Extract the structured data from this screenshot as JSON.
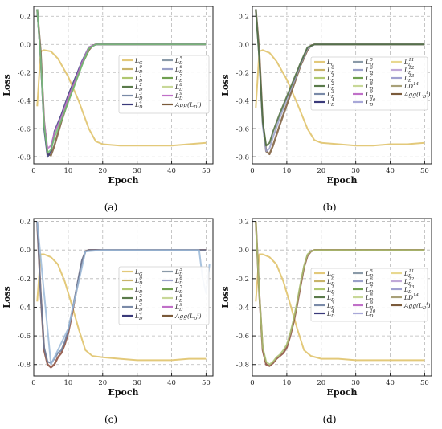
{
  "chart_data": [
    {
      "type": "line",
      "caption": "(a)",
      "xlabel": "Epoch",
      "ylabel": "Loss",
      "xlim": [
        0,
        52
      ],
      "ylim": [
        -0.85,
        0.27
      ],
      "xticks": [
        0,
        10,
        20,
        30,
        40,
        50
      ],
      "yticks": [
        0.2,
        0.0,
        -0.2,
        -0.4,
        -0.6,
        -0.8
      ],
      "grid": true,
      "legend_placement": "right",
      "legend_columns": [
        [
          "L_G",
          "L_D^0",
          "L_D^1",
          "L_D^2",
          "L_D^3",
          "L_D^4"
        ],
        [
          "L_D^5",
          "L_D^6",
          "L_D^7",
          "L_D^8",
          "L_D^9",
          "Agg(L_D^t)"
        ]
      ],
      "series": [
        {
          "name": "L_G",
          "color": "#e3c97a",
          "x": [
            1,
            2,
            3,
            5,
            7,
            10,
            13,
            16,
            18,
            20,
            25,
            30,
            35,
            40,
            45,
            50
          ],
          "y": [
            -0.44,
            -0.05,
            -0.04,
            -0.05,
            -0.1,
            -0.23,
            -0.4,
            -0.6,
            -0.69,
            -0.71,
            -0.72,
            -0.72,
            -0.72,
            -0.72,
            -0.71,
            -0.7
          ]
        },
        {
          "name": "Agg(L_D^t)",
          "color": "#7a5a3a",
          "x": [
            1,
            2,
            3,
            4,
            5,
            6,
            8,
            10,
            12,
            14,
            16,
            17,
            18,
            20,
            25,
            30,
            40,
            50
          ],
          "y": [
            0.25,
            -0.05,
            -0.55,
            -0.78,
            -0.79,
            -0.72,
            -0.55,
            -0.4,
            -0.27,
            -0.14,
            -0.04,
            -0.01,
            0.0,
            0.0,
            0.0,
            0.0,
            0.0,
            0.0
          ]
        },
        {
          "name": "L_D^2",
          "color": "#3a3a7a",
          "x": [
            1,
            2,
            3,
            4,
            5,
            6,
            8,
            10,
            12,
            14,
            16,
            18,
            20,
            30,
            50
          ],
          "y": [
            0.25,
            -0.1,
            -0.6,
            -0.8,
            -0.76,
            -0.62,
            -0.5,
            -0.36,
            -0.24,
            -0.12,
            -0.02,
            0.0,
            0.0,
            0.0,
            0.0
          ]
        },
        {
          "name": "L_D^9",
          "color": "#c070c8",
          "x": [
            1,
            2,
            3,
            4,
            5,
            6,
            8,
            10,
            12,
            14,
            16,
            18,
            20,
            30,
            50
          ],
          "y": [
            0.25,
            -0.1,
            -0.55,
            -0.74,
            -0.72,
            -0.63,
            -0.52,
            -0.38,
            -0.26,
            -0.13,
            -0.02,
            0.0,
            0.0,
            0.0,
            0.0
          ]
        },
        {
          "name": "L_D^6",
          "color": "#70c070",
          "x": [
            1,
            2,
            3,
            4,
            5,
            6,
            8,
            10,
            12,
            14,
            16,
            18,
            20,
            30,
            50
          ],
          "y": [
            0.25,
            -0.1,
            -0.58,
            -0.77,
            -0.75,
            -0.66,
            -0.54,
            -0.41,
            -0.28,
            -0.15,
            -0.03,
            0.0,
            0.0,
            0.0,
            0.0
          ]
        }
      ]
    },
    {
      "type": "line",
      "caption": "(b)",
      "xlabel": "Epoch",
      "ylabel": "Loss",
      "xlim": [
        0,
        52
      ],
      "ylim": [
        -0.85,
        0.27
      ],
      "xticks": [
        0,
        10,
        20,
        30,
        40,
        50
      ],
      "yticks": [
        0.2,
        0.0,
        -0.2,
        -0.4,
        -0.6,
        -0.8
      ],
      "grid": true,
      "legend_placement": "right",
      "legend_columns": [
        [
          "L_G",
          "L_D^0",
          "L_D^1",
          "L_D^2",
          "L_D^3",
          "L_D^4"
        ],
        [
          "L_D^5",
          "L_D^6",
          "L_D^7",
          "L_D^8",
          "L_D^9",
          "L_D^10"
        ],
        [
          "L_D^11",
          "L_D^12",
          "L_D^13",
          "LD^14",
          "Agg(L_D^t)"
        ]
      ],
      "series": [
        {
          "name": "L_G",
          "color": "#e3c97a",
          "x": [
            1,
            2,
            3,
            5,
            7,
            10,
            13,
            16,
            18,
            20,
            25,
            30,
            35,
            40,
            45,
            50
          ],
          "y": [
            -0.45,
            -0.05,
            -0.04,
            -0.06,
            -0.12,
            -0.25,
            -0.42,
            -0.6,
            -0.68,
            -0.7,
            -0.71,
            -0.72,
            -0.72,
            -0.71,
            -0.71,
            -0.7
          ]
        },
        {
          "name": "Agg(L_D^t)",
          "color": "#7a5a3a",
          "x": [
            1,
            2,
            3,
            4,
            5,
            6,
            8,
            10,
            12,
            14,
            16,
            17,
            18,
            20,
            25,
            30,
            40,
            50
          ],
          "y": [
            0.25,
            -0.05,
            -0.55,
            -0.76,
            -0.78,
            -0.72,
            -0.57,
            -0.43,
            -0.29,
            -0.15,
            -0.04,
            -0.01,
            0.0,
            0.0,
            0.0,
            0.0,
            0.0,
            0.0
          ]
        },
        {
          "name": "L_D^6",
          "color": "#9aa0c8",
          "x": [
            1,
            2,
            3,
            4,
            5,
            6,
            8,
            10,
            12,
            14,
            16,
            18,
            20,
            30,
            50
          ],
          "y": [
            0.25,
            -0.1,
            -0.58,
            -0.76,
            -0.74,
            -0.66,
            -0.52,
            -0.39,
            -0.27,
            -0.14,
            -0.03,
            0.0,
            0.0,
            0.0,
            0.0
          ]
        },
        {
          "name": "L_D^3",
          "color": "#4a6a3a",
          "x": [
            1,
            2,
            3,
            4,
            5,
            6,
            8,
            10,
            12,
            14,
            16,
            18,
            20,
            30,
            50
          ],
          "y": [
            0.25,
            -0.1,
            -0.55,
            -0.72,
            -0.7,
            -0.62,
            -0.49,
            -0.37,
            -0.25,
            -0.13,
            -0.02,
            0.0,
            0.0,
            0.0,
            0.0
          ]
        }
      ]
    },
    {
      "type": "line",
      "caption": "(c)",
      "xlabel": "Epoch",
      "ylabel": "Loss",
      "xlim": [
        0,
        52
      ],
      "ylim": [
        -0.88,
        0.22
      ],
      "xticks": [
        0,
        10,
        20,
        30,
        40,
        50
      ],
      "yticks": [
        0.2,
        0.0,
        -0.2,
        -0.4,
        -0.6,
        -0.8
      ],
      "grid": true,
      "legend_placement": "right",
      "legend_columns": [
        [
          "L_G",
          "L_D^0",
          "L_D^1",
          "L_D^2",
          "L_D^3",
          "L_D^4"
        ],
        [
          "L_D^5",
          "L_D^6",
          "L_D^7",
          "L_D^8",
          "L_D^9",
          "Agg(L_D^t)"
        ]
      ],
      "series": [
        {
          "name": "L_G",
          "color": "#e3c97a",
          "x": [
            1,
            2,
            3,
            5,
            7,
            9,
            11,
            13,
            15,
            17,
            20,
            25,
            30,
            35,
            40,
            45,
            50
          ],
          "y": [
            -0.36,
            -0.03,
            -0.03,
            -0.05,
            -0.1,
            -0.22,
            -0.38,
            -0.55,
            -0.7,
            -0.74,
            -0.75,
            -0.76,
            -0.77,
            -0.77,
            -0.77,
            -0.76,
            -0.76
          ]
        },
        {
          "name": "Agg(L_D^t)",
          "color": "#8a4a3a",
          "x": [
            1,
            2,
            3,
            4,
            5,
            6,
            7,
            8,
            9,
            10,
            11,
            12,
            13,
            14,
            15,
            16,
            18,
            20,
            30,
            40,
            50
          ],
          "y": [
            0.2,
            -0.3,
            -0.7,
            -0.8,
            -0.82,
            -0.8,
            -0.75,
            -0.72,
            -0.66,
            -0.58,
            -0.46,
            -0.33,
            -0.2,
            -0.08,
            -0.01,
            0.0,
            0.0,
            0.0,
            0.0,
            0.0,
            0.0
          ]
        },
        {
          "name": "L_D^2",
          "color": "#6a7a9a",
          "x": [
            1,
            2,
            3,
            4,
            5,
            6,
            7,
            8,
            9,
            10,
            11,
            12,
            13,
            14,
            15,
            16,
            18,
            20,
            30,
            40,
            50
          ],
          "y": [
            0.2,
            -0.3,
            -0.68,
            -0.78,
            -0.79,
            -0.76,
            -0.72,
            -0.7,
            -0.64,
            -0.56,
            -0.44,
            -0.32,
            -0.19,
            -0.07,
            -0.01,
            0.0,
            0.0,
            0.0,
            0.0,
            0.0,
            0.0
          ]
        },
        {
          "name": "L_D^9",
          "color": "#9ab8d8",
          "x": [
            1,
            5,
            10,
            15,
            20,
            30,
            40,
            48,
            49,
            50,
            51
          ],
          "y": [
            0.2,
            -0.8,
            -0.55,
            -0.01,
            0.0,
            0.0,
            0.0,
            0.0,
            -0.2,
            -0.3,
            -0.1
          ]
        }
      ]
    },
    {
      "type": "line",
      "caption": "(d)",
      "xlabel": "Epoch",
      "ylabel": "Loss",
      "xlim": [
        0,
        52
      ],
      "ylim": [
        -0.88,
        0.22
      ],
      "xticks": [
        0,
        10,
        20,
        30,
        40,
        50
      ],
      "yticks": [
        0.2,
        0.0,
        -0.2,
        -0.4,
        -0.6,
        -0.8
      ],
      "grid": true,
      "legend_placement": "right",
      "legend_columns": [
        [
          "L_G",
          "L_D^0",
          "L_D^1",
          "L_D^2",
          "L_D^3",
          "L_D^4"
        ],
        [
          "L_D^5",
          "L_D^6",
          "L_D^7",
          "L_D^8",
          "L_D^9",
          "L_D^10"
        ],
        [
          "L_D^11",
          "L_D^12",
          "L_D^13",
          "LD^14",
          "Agg(L_D^t)"
        ]
      ],
      "series": [
        {
          "name": "L_G",
          "color": "#e3c97a",
          "x": [
            1,
            2,
            3,
            5,
            7,
            9,
            11,
            13,
            15,
            17,
            20,
            25,
            30,
            35,
            40,
            45,
            50
          ],
          "y": [
            -0.36,
            -0.03,
            -0.03,
            -0.05,
            -0.1,
            -0.22,
            -0.38,
            -0.55,
            -0.7,
            -0.74,
            -0.76,
            -0.76,
            -0.77,
            -0.77,
            -0.77,
            -0.77,
            -0.77
          ]
        },
        {
          "name": "Agg(L_D^t)",
          "color": "#8a4a3a",
          "x": [
            1,
            2,
            3,
            4,
            5,
            6,
            7,
            8,
            9,
            10,
            11,
            12,
            13,
            14,
            15,
            16,
            17,
            18,
            20,
            30,
            40,
            50
          ],
          "y": [
            0.2,
            -0.3,
            -0.7,
            -0.8,
            -0.81,
            -0.79,
            -0.76,
            -0.74,
            -0.72,
            -0.68,
            -0.6,
            -0.5,
            -0.38,
            -0.25,
            -0.12,
            -0.04,
            -0.01,
            0.0,
            0.0,
            0.0,
            0.0,
            0.0
          ]
        },
        {
          "name": "L_D^7",
          "color": "#a8c070",
          "x": [
            1,
            2,
            3,
            4,
            5,
            6,
            7,
            8,
            9,
            10,
            11,
            12,
            13,
            14,
            15,
            16,
            17,
            18,
            20,
            30,
            40,
            50
          ],
          "y": [
            0.2,
            -0.3,
            -0.68,
            -0.78,
            -0.8,
            -0.78,
            -0.75,
            -0.73,
            -0.7,
            -0.66,
            -0.58,
            -0.48,
            -0.36,
            -0.23,
            -0.11,
            -0.03,
            -0.01,
            0.0,
            0.0,
            0.0,
            0.0,
            0.0
          ]
        }
      ]
    }
  ],
  "legend_colors": {
    "L_G": "#e3c97a",
    "L_D^0": "#c8b46a",
    "L_D^1": "#b0c870",
    "L_D^2": "#5a7a4a",
    "L_D^3": "#7a8aa8",
    "L_D^4": "#3a3a7a",
    "L_D^5": "#8a9aa8",
    "L_D^6": "#9aa0c8",
    "L_D^7": "#70a050",
    "L_D^8": "#c8d898",
    "L_D^9": "#c070c8",
    "L_D^10": "#a8a8d8",
    "L_D^11": "#e8d890",
    "L_D^12": "#c0a8d8",
    "L_D^13": "#a0a0d0",
    "LD^14": "#a8a078",
    "Agg(L_D^t)": "#7a5a3a"
  }
}
